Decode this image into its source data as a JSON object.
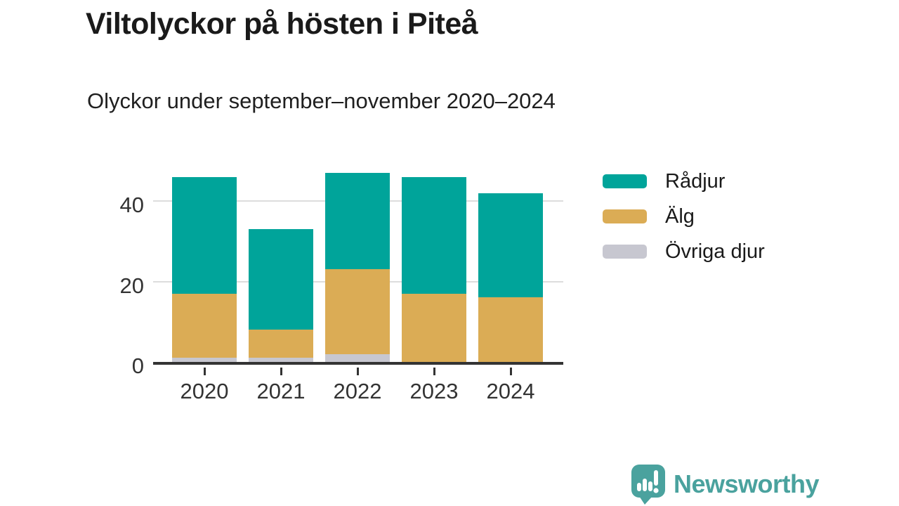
{
  "header": {
    "title": "Viltolyckor på hösten i Piteå",
    "subtitle": "Olyckor under september–november 2020–2024"
  },
  "chart_data": {
    "type": "bar",
    "stacked": true,
    "title": "Viltolyckor på hösten i Piteå",
    "subtitle": "Olyckor under september–november 2020–2024",
    "categories": [
      "2020",
      "2021",
      "2022",
      "2023",
      "2024"
    ],
    "series": [
      {
        "name": "Rådjur",
        "color": "#00a49a",
        "values": [
          29,
          25,
          24,
          29,
          26
        ]
      },
      {
        "name": "Älg",
        "color": "#dbac55",
        "values": [
          16,
          7,
          21,
          17,
          16
        ]
      },
      {
        "name": "Övriga djur",
        "color": "#c7c7d0",
        "values": [
          1,
          1,
          2,
          0,
          0
        ]
      }
    ],
    "stack_bottom_to_top": [
      "Övriga djur",
      "Älg",
      "Rådjur"
    ],
    "totals": [
      46,
      33,
      47,
      46,
      42
    ],
    "y_ticks": [
      0,
      20,
      40
    ],
    "ylim": [
      0,
      48.8
    ],
    "xlabel": "",
    "ylabel": "",
    "grid": "horizontal",
    "legend_position": "right"
  },
  "colors": {
    "axis": "#333333",
    "gridline": "#dddddd",
    "title_text": "#1a1a1a",
    "brand_teal": "#4aa29e"
  },
  "footer": {
    "brand": "Newsworthy"
  }
}
